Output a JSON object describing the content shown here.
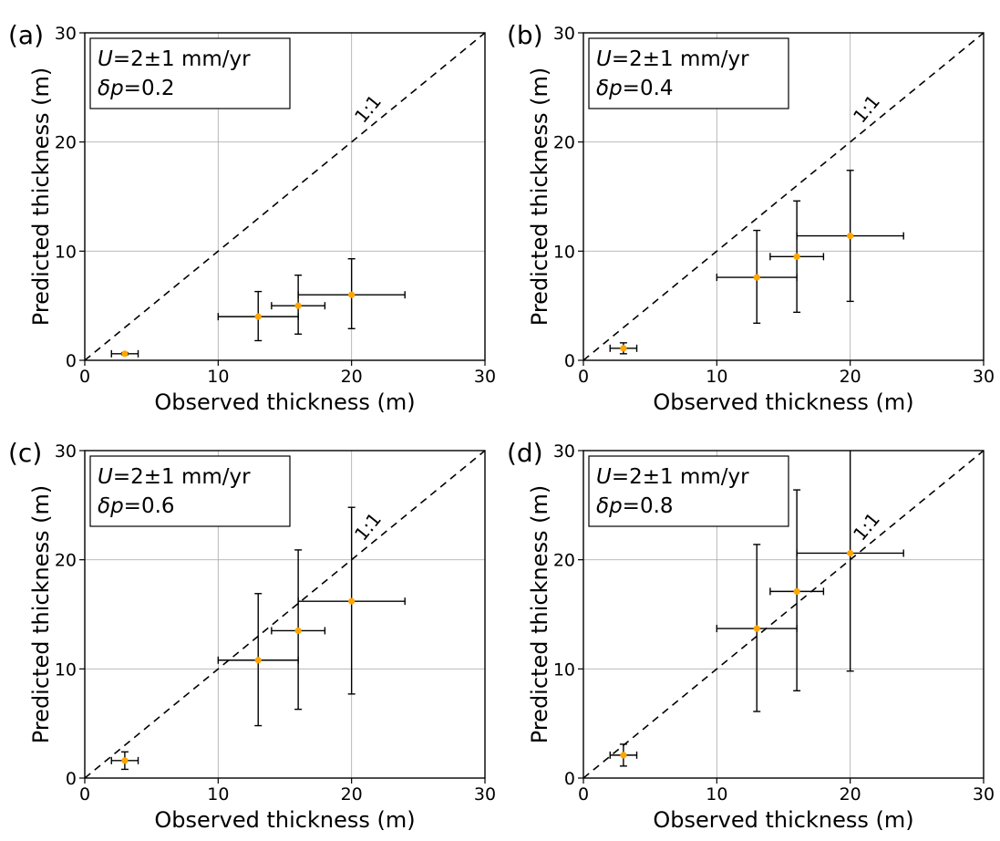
{
  "chart_data": [
    {
      "type": "scatter",
      "panel_label": "(a)",
      "annotation_lines": [
        {
          "var": "U",
          "rest": "=2±1 mm/yr"
        },
        {
          "var": "δp",
          "rest": "=0.2"
        }
      ],
      "identity_label": "1:1",
      "xlabel": "Observed thickness (m)",
      "ylabel": "Predicted thickness (m)",
      "xlim": [
        0,
        30
      ],
      "ylim": [
        0,
        30
      ],
      "xticks": [
        0,
        10,
        20,
        30
      ],
      "yticks": [
        0,
        10,
        20,
        30
      ],
      "grid": true,
      "points": [
        {
          "x": 3,
          "y": 0.6,
          "xerr": [
            1,
            1
          ],
          "yerr": [
            0.1,
            0.1
          ]
        },
        {
          "x": 13,
          "y": 4.0,
          "xerr": [
            3,
            3
          ],
          "yerr": [
            2.2,
            2.3
          ]
        },
        {
          "x": 16,
          "y": 5.0,
          "xerr": [
            2,
            2
          ],
          "yerr": [
            2.6,
            2.8
          ]
        },
        {
          "x": 20,
          "y": 6.0,
          "xerr": [
            4,
            4
          ],
          "yerr": [
            3.1,
            3.3
          ]
        }
      ]
    },
    {
      "type": "scatter",
      "panel_label": "(b)",
      "annotation_lines": [
        {
          "var": "U",
          "rest": "=2±1 mm/yr"
        },
        {
          "var": "δp",
          "rest": "=0.4"
        }
      ],
      "identity_label": "1:1",
      "xlabel": "Observed thickness (m)",
      "ylabel": "Predicted thickness (m)",
      "xlim": [
        0,
        30
      ],
      "ylim": [
        0,
        30
      ],
      "xticks": [
        0,
        10,
        20,
        30
      ],
      "yticks": [
        0,
        10,
        20,
        30
      ],
      "grid": true,
      "points": [
        {
          "x": 3,
          "y": 1.1,
          "xerr": [
            1,
            1
          ],
          "yerr": [
            0.5,
            0.5
          ]
        },
        {
          "x": 13,
          "y": 7.6,
          "xerr": [
            3,
            3
          ],
          "yerr": [
            4.2,
            4.3
          ]
        },
        {
          "x": 16,
          "y": 9.5,
          "xerr": [
            2,
            2
          ],
          "yerr": [
            5.1,
            5.1
          ]
        },
        {
          "x": 20,
          "y": 11.4,
          "xerr": [
            4,
            4
          ],
          "yerr": [
            6.0,
            6.0
          ]
        }
      ]
    },
    {
      "type": "scatter",
      "panel_label": "(c)",
      "annotation_lines": [
        {
          "var": "U",
          "rest": "=2±1 mm/yr"
        },
        {
          "var": "δp",
          "rest": "=0.6"
        }
      ],
      "identity_label": "1:1",
      "xlabel": "Observed thickness (m)",
      "ylabel": "Predicted thickness (m)",
      "xlim": [
        0,
        30
      ],
      "ylim": [
        0,
        30
      ],
      "xticks": [
        0,
        10,
        20,
        30
      ],
      "yticks": [
        0,
        10,
        20,
        30
      ],
      "grid": true,
      "points": [
        {
          "x": 3,
          "y": 1.6,
          "xerr": [
            1,
            1
          ],
          "yerr": [
            0.8,
            0.8
          ]
        },
        {
          "x": 13,
          "y": 10.8,
          "xerr": [
            3,
            3
          ],
          "yerr": [
            6.0,
            6.1
          ]
        },
        {
          "x": 16,
          "y": 13.5,
          "xerr": [
            2,
            2
          ],
          "yerr": [
            7.2,
            7.4
          ]
        },
        {
          "x": 20,
          "y": 16.2,
          "xerr": [
            4,
            4
          ],
          "yerr": [
            8.5,
            8.6
          ]
        }
      ]
    },
    {
      "type": "scatter",
      "panel_label": "(d)",
      "annotation_lines": [
        {
          "var": "U",
          "rest": "=2±1 mm/yr"
        },
        {
          "var": "δp",
          "rest": "=0.8"
        }
      ],
      "identity_label": "1:1",
      "xlabel": "Observed thickness (m)",
      "ylabel": "Predicted thickness (m)",
      "xlim": [
        0,
        30
      ],
      "ylim": [
        0,
        30
      ],
      "xticks": [
        0,
        10,
        20,
        30
      ],
      "yticks": [
        0,
        10,
        20,
        30
      ],
      "grid": true,
      "points": [
        {
          "x": 3,
          "y": 2.1,
          "xerr": [
            1,
            1
          ],
          "yerr": [
            1.0,
            1.0
          ]
        },
        {
          "x": 13,
          "y": 13.7,
          "xerr": [
            3,
            3
          ],
          "yerr": [
            7.6,
            7.7
          ]
        },
        {
          "x": 16,
          "y": 17.1,
          "xerr": [
            2,
            2
          ],
          "yerr": [
            9.1,
            9.3
          ]
        },
        {
          "x": 20,
          "y": 20.6,
          "xerr": [
            4,
            4
          ],
          "yerr": [
            10.8,
            10.5
          ]
        }
      ]
    }
  ],
  "colors": {
    "marker": "#FFA500",
    "axes": "#000000",
    "grid": "#b0b0b0"
  }
}
